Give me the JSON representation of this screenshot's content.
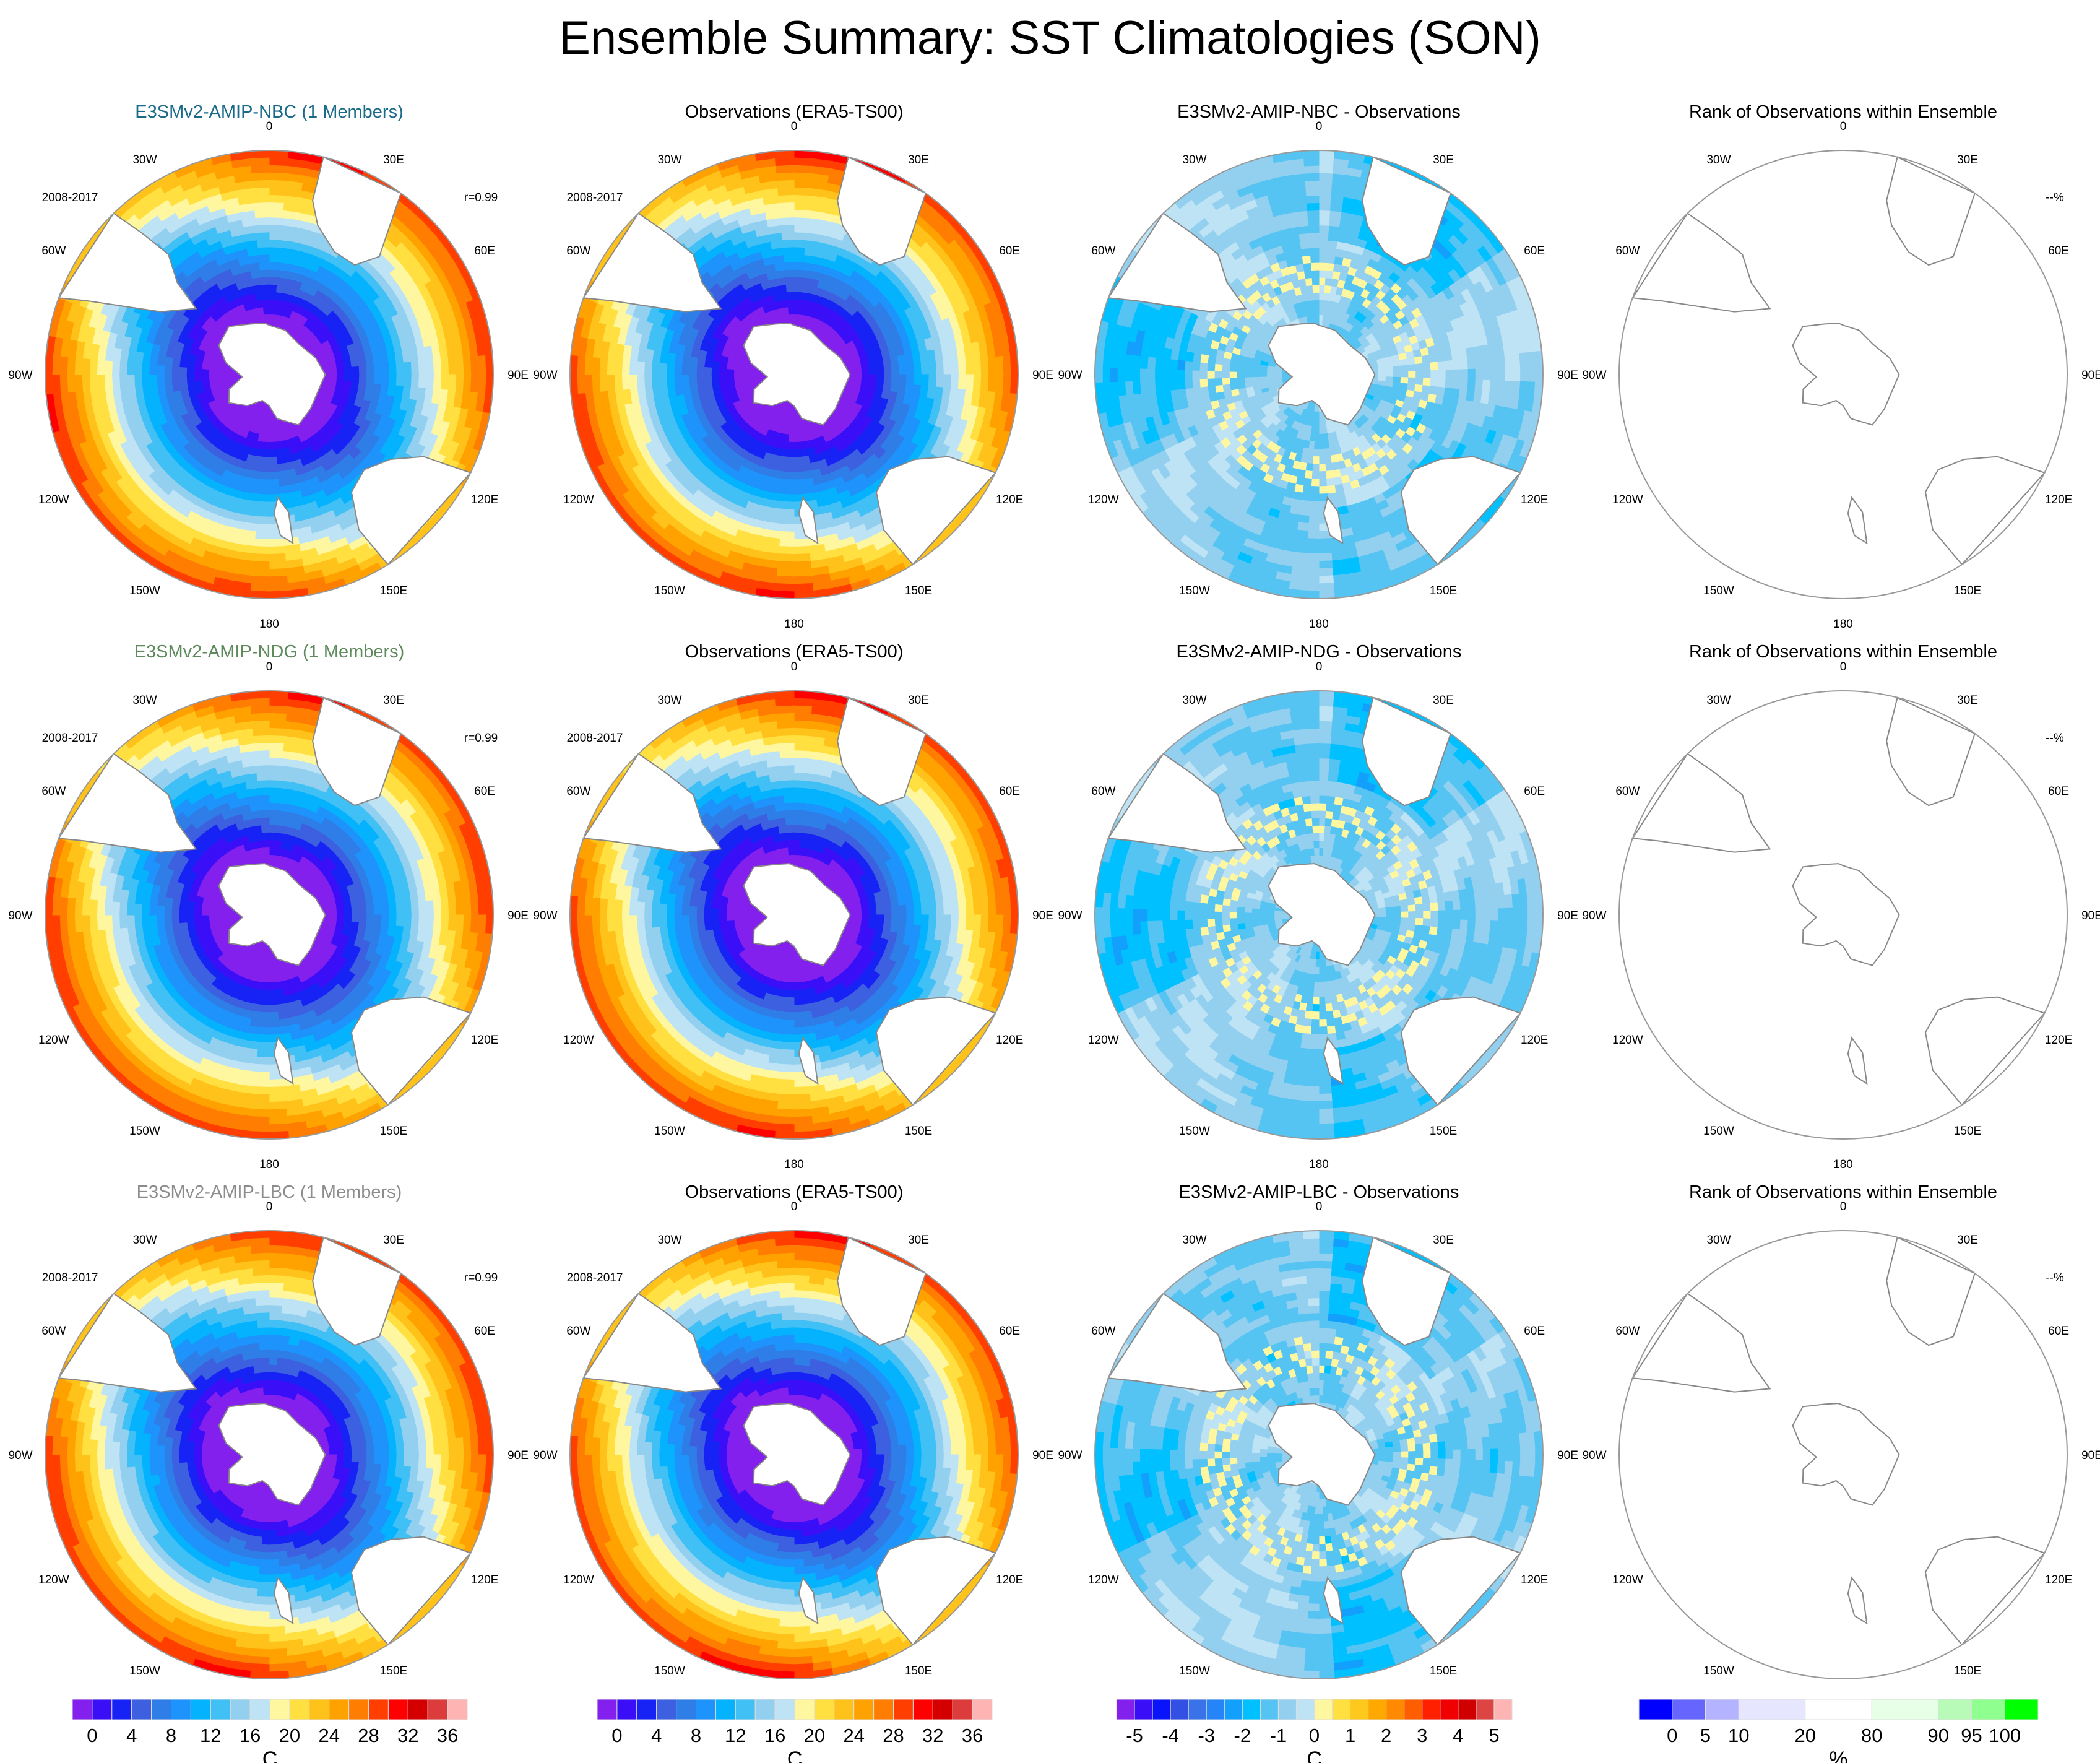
{
  "figure_title": "Ensemble Summary: SST Climatologies (SON)",
  "chart_data": {
    "type": "heatmap",
    "projection": "south polar stereographic",
    "title": "Ensemble Summary: SST Climatologies (SON)",
    "longitude_labels": [
      "0",
      "30E",
      "60E",
      "90E",
      "120E",
      "150E",
      "180",
      "150W",
      "120W",
      "90W",
      "60W",
      "30W"
    ],
    "rows": [
      {
        "model": "E3SMv2-AMIP-NBC",
        "model_color": "#1a6a8a",
        "panels": [
          {
            "kind": "model",
            "title": "E3SMv2-AMIP-NBC (1 Members)",
            "period": "2008-2017",
            "corr": "r=0.99"
          },
          {
            "kind": "obs",
            "title": "Observations (ERA5-TS00)",
            "period": "2008-2017"
          },
          {
            "kind": "diff",
            "title": "E3SMv2-AMIP-NBC - Observations"
          },
          {
            "kind": "rank",
            "title": "Rank of Observations within Ensemble",
            "rank_note": "--%"
          }
        ]
      },
      {
        "model": "E3SMv2-AMIP-NDG",
        "model_color": "#5e8a5e",
        "panels": [
          {
            "kind": "model",
            "title": "E3SMv2-AMIP-NDG (1 Members)",
            "period": "2008-2017",
            "corr": "r=0.99"
          },
          {
            "kind": "obs",
            "title": "Observations (ERA5-TS00)",
            "period": "2008-2017"
          },
          {
            "kind": "diff",
            "title": "E3SMv2-AMIP-NDG - Observations"
          },
          {
            "kind": "rank",
            "title": "Rank of Observations within Ensemble",
            "rank_note": "--%"
          }
        ]
      },
      {
        "model": "E3SMv2-AMIP-LBC",
        "model_color": "#8c8c8c",
        "panels": [
          {
            "kind": "model",
            "title": "E3SMv2-AMIP-LBC (1 Members)",
            "period": "2008-2017",
            "corr": "r=0.99"
          },
          {
            "kind": "obs",
            "title": "Observations (ERA5-TS00)",
            "period": "2008-2017"
          },
          {
            "kind": "diff",
            "title": "E3SMv2-AMIP-LBC - Observations"
          },
          {
            "kind": "rank",
            "title": "Rank of Observations within Ensemble",
            "rank_note": "--%"
          }
        ]
      }
    ],
    "colorbars": [
      {
        "for": "model",
        "unit": "C",
        "levels": [
          0,
          2,
          4,
          6,
          8,
          10,
          12,
          14,
          16,
          18,
          20,
          22,
          24,
          26,
          28,
          30,
          32,
          34,
          36
        ],
        "tick_labels": [
          "0",
          "4",
          "8",
          "12",
          "16",
          "20",
          "24",
          "28",
          "32",
          "36"
        ],
        "tick_values": [
          0,
          4,
          8,
          12,
          16,
          20,
          24,
          28,
          32,
          36
        ],
        "colors": [
          "#8420ee",
          "#3a0ff8",
          "#1722f5",
          "#3d60e0",
          "#2f7ee8",
          "#1d93fb",
          "#04b2fe",
          "#40c0f5",
          "#93d0ef",
          "#bde3f5",
          "#fff7a0",
          "#ffe040",
          "#ffc21a",
          "#ffa200",
          "#ff7d00",
          "#ff3e00",
          "#fe0000",
          "#d40000",
          "#dd3c3c",
          "#ffb4b4"
        ]
      },
      {
        "for": "obs",
        "unit": "C",
        "levels": [
          0,
          2,
          4,
          6,
          8,
          10,
          12,
          14,
          16,
          18,
          20,
          22,
          24,
          26,
          28,
          30,
          32,
          34,
          36
        ],
        "tick_labels": [
          "0",
          "4",
          "8",
          "12",
          "16",
          "20",
          "24",
          "28",
          "32",
          "36"
        ],
        "tick_values": [
          0,
          4,
          8,
          12,
          16,
          20,
          24,
          28,
          32,
          36
        ],
        "colors": [
          "#8420ee",
          "#3a0ff8",
          "#1722f5",
          "#3d60e0",
          "#2f7ee8",
          "#1d93fb",
          "#04b2fe",
          "#40c0f5",
          "#93d0ef",
          "#bde3f5",
          "#fff7a0",
          "#ffe040",
          "#ffc21a",
          "#ffa200",
          "#ff7d00",
          "#ff3e00",
          "#fe0000",
          "#d40000",
          "#dd3c3c",
          "#ffb4b4"
        ]
      },
      {
        "for": "diff",
        "unit": "C",
        "levels": [
          -5,
          -4.5,
          -4,
          -3.5,
          -3,
          -2.5,
          -2,
          -1.5,
          -1,
          -0.5,
          0,
          0.5,
          1,
          1.5,
          2,
          2.5,
          3,
          3.5,
          4,
          4.5,
          5
        ],
        "tick_labels": [
          "-5",
          "-4",
          "-3",
          "-2",
          "-1",
          "0",
          "1",
          "2",
          "3",
          "4",
          "5"
        ],
        "tick_values": [
          -5,
          -4,
          -3,
          -2,
          -1,
          0,
          1,
          2,
          3,
          4,
          5
        ],
        "colors": [
          "#8420ee",
          "#3a0ff8",
          "#0a14fb",
          "#3350e4",
          "#3a72e8",
          "#2585f8",
          "#12a0fc",
          "#00c0ff",
          "#55c4f3",
          "#93d0ef",
          "#bde3f5",
          "#fff7a0",
          "#ffe040",
          "#ffc81c",
          "#ffa800",
          "#ff8a00",
          "#ff5e00",
          "#ff2000",
          "#f00000",
          "#d00000",
          "#dd4444",
          "#ffb4b4"
        ]
      },
      {
        "for": "rank",
        "unit": "%",
        "levels": [
          0,
          5,
          10,
          20,
          80,
          90,
          95,
          100
        ],
        "tick_labels": [
          "0",
          "5",
          "10",
          "20",
          "80",
          "90",
          "95",
          "100"
        ],
        "tick_values": [
          0,
          5,
          10,
          20,
          80,
          90,
          95,
          100
        ],
        "colors": [
          "#0000ff",
          "#6666ff",
          "#b3b3ff",
          "#e6e6ff",
          "#ffffff",
          "#e6ffe6",
          "#b8fab8",
          "#8fff8f",
          "#00ff00"
        ],
        "box_widths": [
          1,
          1,
          1,
          2,
          2,
          2,
          1,
          1,
          1
        ]
      }
    ],
    "fields": {
      "model": {
        "description": "SST climatology: ~-2 C near Antarctica increasing to ~26-28 C at the northern edge",
        "rings_C": [
          -1,
          1,
          3,
          5,
          7,
          9,
          11,
          13,
          15,
          17,
          19,
          21,
          23,
          25,
          27
        ]
      },
      "obs": {
        "description": "ERA5 SST climatology, similar pattern to model",
        "rings_C": [
          -1,
          1,
          3,
          5,
          7,
          9,
          11,
          13,
          15,
          17,
          19,
          21,
          23,
          25,
          27
        ]
      },
      "diff": {
        "description": "Mostly small negative bias (-0.5 to -1.5 C), patches of -2 C and scattered small positive (0 to 0.5 C) near the Antarctic Circumpolar Current"
      },
      "rank": {
        "description": "Blank (no ensemble spread; rank undefined)"
      }
    }
  }
}
